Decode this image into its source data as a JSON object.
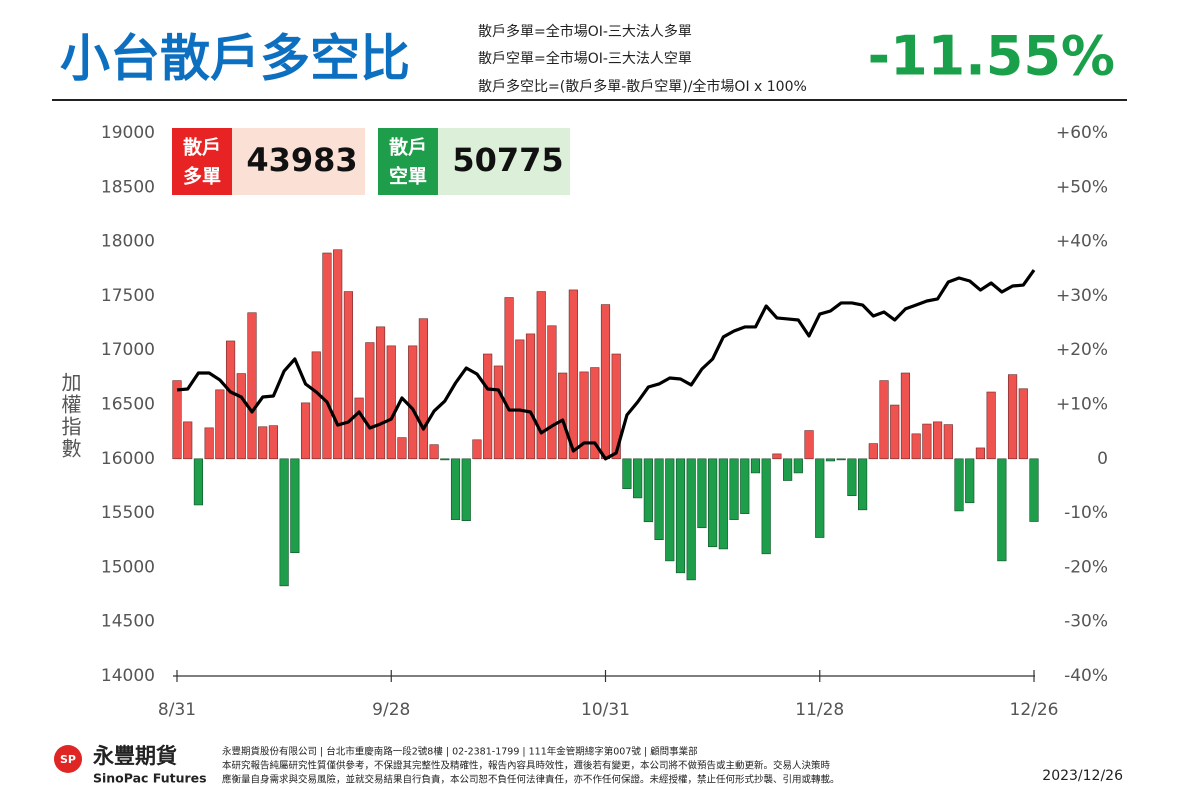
{
  "header": {
    "title": "小台散戶多空比",
    "definitions": [
      "散戶多單=全市場OI-三大法人多單",
      "散戶空單=全市場OI-三大法人空單",
      "散戶多空比=(散戶多單-散戶空單)/全市場OI x 100%"
    ],
    "headline": "-11.55%"
  },
  "badges": [
    {
      "label_lines": [
        "散戶",
        "多單"
      ],
      "value": 43983
    },
    {
      "label_lines": [
        "散戶",
        "空單"
      ],
      "value": 50775
    }
  ],
  "chart_data": {
    "type": "combo",
    "y_label": "加權指數",
    "categories": [
      "8/31",
      null,
      null,
      null,
      null,
      null,
      null,
      null,
      null,
      null,
      null,
      null,
      null,
      null,
      null,
      null,
      null,
      null,
      null,
      null,
      "9/28",
      null,
      null,
      null,
      null,
      null,
      null,
      null,
      null,
      null,
      null,
      null,
      null,
      null,
      null,
      null,
      null,
      null,
      null,
      null,
      "10/31",
      null,
      null,
      null,
      null,
      null,
      null,
      null,
      null,
      null,
      null,
      null,
      null,
      null,
      null,
      null,
      null,
      null,
      null,
      null,
      "11/28",
      null,
      null,
      null,
      null,
      null,
      null,
      null,
      null,
      null,
      null,
      null,
      null,
      null,
      null,
      null,
      null,
      null,
      null,
      null,
      "12/26"
    ],
    "ylim": [
      14000,
      19000
    ],
    "yticks": [
      14000,
      14500,
      15000,
      15500,
      16000,
      16500,
      17000,
      17500,
      18000,
      18500,
      19000
    ],
    "y2lim": [
      -40,
      60
    ],
    "y2ticks": [
      {
        "value": -40,
        "label": "-40%"
      },
      {
        "value": -30,
        "label": "-30%"
      },
      {
        "value": -20,
        "label": "-20%"
      },
      {
        "value": -10,
        "label": "-10%"
      },
      0,
      {
        "value": 10,
        "label": "+10%"
      },
      {
        "value": 20,
        "label": "+20%"
      },
      {
        "value": 30,
        "label": "+30%"
      },
      {
        "value": 40,
        "label": "+40%"
      },
      {
        "value": 50,
        "label": "+50%"
      },
      {
        "value": 60,
        "label": "+60%"
      }
    ],
    "series": [
      {
        "type": "bar",
        "axis": "y2",
        "color": "#ef5350",
        "negative_color": "#1e9e4a",
        "values": [
          14.4,
          6.8,
          -8.5,
          5.7,
          12.7,
          21.7,
          15.7,
          26.9,
          5.9,
          6.1,
          -23.4,
          -17.3,
          10.3,
          19.7,
          37.9,
          38.5,
          30.8,
          11.2,
          21.4,
          24.3,
          20.8,
          3.9,
          20.8,
          25.8,
          2.6,
          -0.2,
          -11.2,
          -11.4,
          3.5,
          19.3,
          17.1,
          29.7,
          21.9,
          23,
          30.8,
          24.5,
          15.8,
          31.1,
          16,
          16.8,
          28.4,
          19.3,
          -5.5,
          -7.2,
          -11.6,
          -14.9,
          -18.8,
          -21,
          -22.3,
          -12.7,
          -16.2,
          -16.6,
          -11.2,
          -10.1,
          -2.6,
          -17.5,
          0.9,
          -4,
          -2.6,
          5.2,
          -14.5,
          -0.4,
          -0.2,
          -6.8,
          -9.4,
          2.8,
          14.4,
          9.9,
          15.8,
          4.6,
          6.4,
          6.8,
          6.3,
          -9.6,
          -8.1,
          2,
          12.3,
          -18.8,
          15.5,
          12.9,
          -11.55
        ]
      },
      {
        "type": "line",
        "axis": "y",
        "color": "#000000",
        "values": [
          16634,
          16643,
          16790,
          16790,
          16726,
          16615,
          16569,
          16431,
          16569,
          16578,
          16808,
          16919,
          16689,
          16615,
          16523,
          16311,
          16339,
          16431,
          16284,
          16321,
          16366,
          16560,
          16459,
          16274,
          16440,
          16532,
          16698,
          16836,
          16781,
          16643,
          16634,
          16449,
          16449,
          16431,
          16238,
          16302,
          16357,
          16072,
          16146,
          16146,
          16000,
          16054,
          16403,
          16523,
          16661,
          16689,
          16744,
          16735,
          16680,
          16827,
          16919,
          17122,
          17177,
          17214,
          17214,
          17407,
          17297,
          17288,
          17278,
          17131,
          17333,
          17361,
          17435,
          17435,
          17416,
          17315,
          17352,
          17278,
          17380,
          17416,
          17453,
          17472,
          17628,
          17665,
          17637,
          17554,
          17619,
          17536,
          17591,
          17600,
          17738
        ]
      }
    ]
  },
  "footer": {
    "brand": "永豐期貨",
    "brand_en": "SinoPac Futures",
    "lines": [
      "永豐期貨股份有限公司 | 台北市重慶南路一段2號8樓 | 02-2381-1799 | 111年金管期總字第007號 | 顧問事業部",
      "本研究報告純屬研究性質僅供參考，不保證其完整性及精確性，報告內容具時效性，邇後若有變更，本公司將不做預告或主動更新。交易人決策時",
      "應衡量自身需求與交易風險，並就交易結果自行負責，本公司恕不負任何法律責任，亦不作任何保證。未經授權，禁止任何形式抄襲、引用或轉載。"
    ],
    "date": "2023/12/26"
  }
}
